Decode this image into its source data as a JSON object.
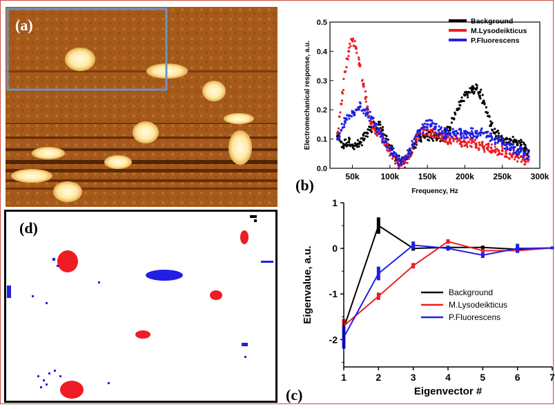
{
  "panels": {
    "a": {
      "label": "(a)"
    },
    "b": {
      "label": "(b)"
    },
    "c": {
      "label": "(c)"
    },
    "d": {
      "label": "(d)"
    }
  },
  "colors": {
    "background": "#000000",
    "lysodeikticus": "#ee1c24",
    "fluorescens": "#1f1fe6",
    "afm_dark": "#5a2a08",
    "afm_mid": "#b0631a",
    "afm_light": "#fff4c0",
    "roi_box": "#6f93c2"
  },
  "chart_data": [
    {
      "type": "scatter",
      "ylabel": "Electromechanical response, a.u.",
      "xlabel": "Frequency, Hz",
      "x_range": [
        20000,
        300000
      ],
      "ylim": [
        0,
        0.5
      ],
      "x_ticks": [
        "50k",
        "100k",
        "150k",
        "200k",
        "250k",
        "300k"
      ],
      "x_tick_values": [
        50000,
        100000,
        150000,
        200000,
        250000,
        300000
      ],
      "y_ticks": [
        "0.0",
        "0.1",
        "0.2",
        "0.3",
        "0.4",
        "0.5"
      ],
      "y_tick_values": [
        0,
        0.1,
        0.2,
        0.3,
        0.4,
        0.5
      ],
      "legend_position": "top-right",
      "series": [
        {
          "name": "Background",
          "color": "#000000",
          "x": [
            30000,
            35000,
            40000,
            45000,
            50000,
            55000,
            60000,
            65000,
            70000,
            75000,
            80000,
            85000,
            90000,
            95000,
            100000,
            105000,
            110000,
            115000,
            120000,
            125000,
            130000,
            135000,
            140000,
            145000,
            150000,
            155000,
            160000,
            165000,
            170000,
            175000,
            180000,
            185000,
            190000,
            195000,
            200000,
            205000,
            210000,
            215000,
            220000,
            225000,
            230000,
            235000,
            240000,
            245000,
            250000,
            255000,
            260000,
            265000,
            270000,
            275000,
            280000,
            285000
          ],
          "y": [
            0.11,
            0.09,
            0.08,
            0.09,
            0.08,
            0.08,
            0.09,
            0.1,
            0.12,
            0.14,
            0.15,
            0.15,
            0.13,
            0.1,
            0.07,
            0.05,
            0.03,
            0.02,
            0.03,
            0.05,
            0.07,
            0.09,
            0.1,
            0.11,
            0.11,
            0.11,
            0.11,
            0.11,
            0.11,
            0.12,
            0.14,
            0.17,
            0.2,
            0.23,
            0.25,
            0.26,
            0.27,
            0.27,
            0.26,
            0.23,
            0.19,
            0.15,
            0.12,
            0.11,
            0.1,
            0.1,
            0.1,
            0.09,
            0.08,
            0.08,
            0.07,
            0.06
          ]
        },
        {
          "name": "M.Lysodeikticus",
          "color": "#ee1c24",
          "x": [
            30000,
            35000,
            40000,
            45000,
            50000,
            55000,
            60000,
            65000,
            70000,
            75000,
            80000,
            85000,
            90000,
            95000,
            100000,
            105000,
            110000,
            115000,
            120000,
            125000,
            130000,
            135000,
            140000,
            145000,
            150000,
            155000,
            160000,
            165000,
            170000,
            175000,
            180000,
            185000,
            190000,
            195000,
            200000,
            205000,
            210000,
            215000,
            220000,
            225000,
            230000,
            235000,
            240000,
            245000,
            250000,
            255000,
            260000,
            265000,
            270000,
            275000,
            280000,
            285000
          ],
          "y": [
            0.12,
            0.22,
            0.33,
            0.4,
            0.44,
            0.41,
            0.35,
            0.28,
            0.21,
            0.16,
            0.13,
            0.12,
            0.1,
            0.08,
            0.06,
            0.04,
            0.02,
            0.01,
            0.02,
            0.04,
            0.07,
            0.1,
            0.12,
            0.13,
            0.13,
            0.12,
            0.12,
            0.11,
            0.11,
            0.1,
            0.1,
            0.1,
            0.1,
            0.09,
            0.09,
            0.09,
            0.09,
            0.08,
            0.08,
            0.07,
            0.07,
            0.07,
            0.06,
            0.06,
            0.06,
            0.05,
            0.05,
            0.05,
            0.04,
            0.04,
            0.03,
            0.03
          ]
        },
        {
          "name": "P.Fluorescens",
          "color": "#1f1fe6",
          "x": [
            30000,
            35000,
            40000,
            45000,
            50000,
            55000,
            60000,
            65000,
            70000,
            75000,
            80000,
            85000,
            90000,
            95000,
            100000,
            105000,
            110000,
            115000,
            120000,
            125000,
            130000,
            135000,
            140000,
            145000,
            150000,
            155000,
            160000,
            165000,
            170000,
            175000,
            180000,
            185000,
            190000,
            195000,
            200000,
            205000,
            210000,
            215000,
            220000,
            225000,
            230000,
            235000,
            240000,
            245000,
            250000,
            255000,
            260000,
            265000,
            270000,
            275000,
            280000,
            285000
          ],
          "y": [
            0.1,
            0.13,
            0.16,
            0.18,
            0.19,
            0.2,
            0.21,
            0.2,
            0.19,
            0.17,
            0.15,
            0.13,
            0.11,
            0.09,
            0.07,
            0.05,
            0.03,
            0.02,
            0.03,
            0.05,
            0.08,
            0.11,
            0.13,
            0.14,
            0.15,
            0.15,
            0.14,
            0.13,
            0.12,
            0.12,
            0.12,
            0.12,
            0.12,
            0.12,
            0.12,
            0.12,
            0.12,
            0.12,
            0.12,
            0.12,
            0.11,
            0.11,
            0.1,
            0.1,
            0.09,
            0.08,
            0.08,
            0.07,
            0.06,
            0.06,
            0.05,
            0.04
          ]
        }
      ]
    },
    {
      "type": "line",
      "xlabel": "Eigenvector #",
      "ylabel": "Eigenvalue, a.u.",
      "x": [
        1,
        2,
        3,
        4,
        5,
        6,
        7
      ],
      "xlim": [
        1,
        7
      ],
      "ylim": [
        -2.6,
        1
      ],
      "x_ticks": [
        "1",
        "2",
        "3",
        "4",
        "5",
        "6",
        "7"
      ],
      "y_ticks": [
        "1",
        "0",
        "-1",
        "-2"
      ],
      "y_tick_values": [
        1,
        0,
        -1,
        -2
      ],
      "legend_position": "bottom-right",
      "series": [
        {
          "name": "Background",
          "color": "#000000",
          "values": [
            -1.75,
            0.5,
            0.0,
            0.02,
            0.02,
            -0.02,
            0.01
          ],
          "err": [
            0.2,
            0.18,
            0.05,
            0.04,
            0.04,
            0.04,
            0.03
          ]
        },
        {
          "name": "M.Lysodeikticus",
          "color": "#ee1c24",
          "values": [
            -1.7,
            -1.05,
            -0.38,
            0.15,
            -0.05,
            -0.05,
            0.01
          ],
          "err": [
            0.15,
            0.08,
            0.06,
            0.05,
            0.04,
            0.04,
            0.03
          ]
        },
        {
          "name": "P.Fluorescens",
          "color": "#1f1fe6",
          "values": [
            -1.95,
            -0.55,
            0.07,
            0.0,
            -0.15,
            0.0,
            0.01
          ],
          "err": [
            0.25,
            0.15,
            0.08,
            0.05,
            0.06,
            0.1,
            0.03
          ]
        }
      ]
    }
  ]
}
